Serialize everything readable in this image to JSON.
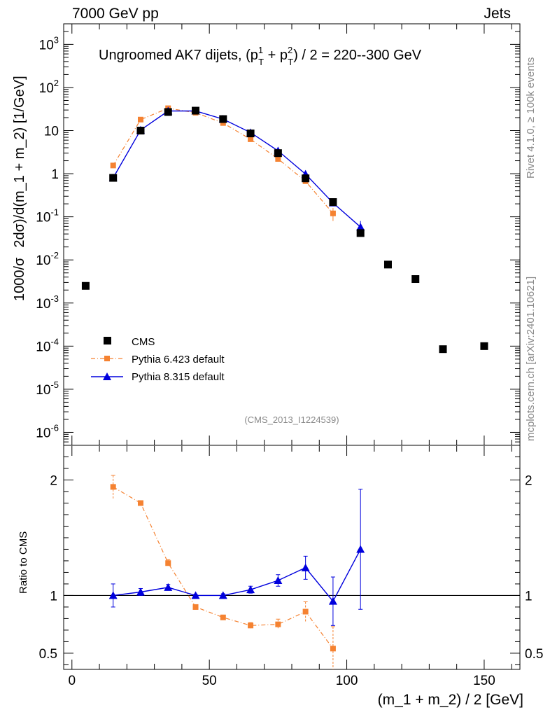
{
  "header": {
    "left": "7000 GeV pp",
    "right": "Jets"
  },
  "side_labels": {
    "rivet": "Rivet 4.1.0, ≥ 100k events",
    "mcplots": "mcplots.cern.ch [arXiv:2401.10621]"
  },
  "colors": {
    "cms": "#000000",
    "py6": "#f58231",
    "py8": "#0000dd"
  },
  "chart_data": [
    {
      "type": "scatter",
      "panel": "main",
      "title": "Ungroomed AK7 dijets, (p_T^1 + p_T^2) / 2 = 220--300 GeV",
      "title_parts": {
        "pre": "Ungroomed AK7 dijets, (p",
        "sub1": "T",
        "sup1": "1",
        "mid": " + p",
        "sub2": "T",
        "sup2": "2",
        "post": ") / 2 = 220--300 GeV"
      },
      "ylabel": "1000/σ   2dσ)/d(m_1 + m_2) [1/GeV]",
      "ylabel_parts": {
        "a": "1000/σ",
        "b": "2dσ)/d(m_1 + m_2) [1/GeV]"
      },
      "yscale": "log",
      "ylim": [
        5e-07,
        3000
      ],
      "y_ticks": [
        {
          "value": 1e-06,
          "base": "10",
          "exp": "-6"
        },
        {
          "value": 1e-05,
          "base": "10",
          "exp": "-5"
        },
        {
          "value": 0.0001,
          "base": "10",
          "exp": "-4"
        },
        {
          "value": 0.001,
          "base": "10",
          "exp": "-3"
        },
        {
          "value": 0.01,
          "base": "10",
          "exp": "-2"
        },
        {
          "value": 0.1,
          "base": "10",
          "exp": "-1"
        },
        {
          "value": 1,
          "base": "1",
          "exp": ""
        },
        {
          "value": 10,
          "base": "10",
          "exp": ""
        },
        {
          "value": 100,
          "base": "10",
          "exp": "2"
        },
        {
          "value": 1000,
          "base": "10",
          "exp": "3"
        }
      ],
      "xlim": [
        -3,
        163
      ],
      "watermark": "(CMS_2013_I1224539)",
      "legend_position": "lower-left",
      "series": [
        {
          "name": "CMS",
          "marker": "square",
          "x": [
            5,
            15,
            25,
            35,
            45,
            55,
            65,
            75,
            85,
            95,
            105,
            115,
            125,
            135,
            150
          ],
          "y": [
            0.0025,
            0.8,
            10,
            27,
            29,
            18.5,
            8.6,
            3.0,
            0.78,
            0.22,
            0.042,
            0.0078,
            0.0036,
            8.5e-05,
            0.0001
          ]
        },
        {
          "name": "Pythia 6.423 default",
          "marker": "square-small",
          "line": "dash-dot",
          "x": [
            15,
            25,
            35,
            45,
            55,
            65,
            75,
            85,
            95
          ],
          "y": [
            1.55,
            18,
            33,
            26,
            15,
            6.3,
            2.2,
            0.67,
            0.12
          ],
          "err": [
            0.1,
            0.6,
            1.2,
            0.8,
            0.5,
            0.25,
            0.12,
            0.07,
            0.04
          ]
        },
        {
          "name": "Pythia 8.315 default",
          "marker": "triangle",
          "line": "solid",
          "x": [
            15,
            25,
            35,
            45,
            55,
            65,
            75,
            85,
            95,
            105
          ],
          "y": [
            0.8,
            10.3,
            28.5,
            28.5,
            18.5,
            9.0,
            3.4,
            0.98,
            0.21,
            0.058
          ],
          "err": [
            0.08,
            0.4,
            0.9,
            0.8,
            0.5,
            0.3,
            0.15,
            0.08,
            0.03,
            0.022
          ]
        }
      ]
    },
    {
      "type": "line",
      "panel": "ratio",
      "ylabel": "Ratio to CMS",
      "xlabel": "(m_1 + m_2) / 2 [GeV]",
      "ylim": [
        0.36,
        2.3
      ],
      "xlim": [
        -3,
        163
      ],
      "y_tick_labels": [
        {
          "value": 0.5,
          "label": "0.5"
        },
        {
          "value": 1,
          "label": "1"
        },
        {
          "value": 2,
          "label": "2"
        }
      ],
      "x_tick_labels": [
        {
          "value": 0,
          "label": "0"
        },
        {
          "value": 50,
          "label": "50"
        },
        {
          "value": 100,
          "label": "100"
        },
        {
          "value": 150,
          "label": "150"
        }
      ],
      "reference_line": 1,
      "series": [
        {
          "name": "Pythia 6.423 default",
          "x": [
            15,
            25,
            35,
            45,
            55,
            65,
            75,
            85,
            95
          ],
          "y": [
            1.94,
            1.8,
            1.28,
            0.9,
            0.81,
            0.74,
            0.75,
            0.86,
            0.54
          ],
          "err": [
            0.1,
            0.02,
            0.03,
            0.01,
            0.02,
            0.025,
            0.045,
            0.085,
            0.19
          ]
        },
        {
          "name": "Pythia 8.315 default",
          "x": [
            15,
            25,
            35,
            45,
            55,
            65,
            75,
            85,
            95,
            105
          ],
          "y": [
            1.0,
            1.03,
            1.07,
            1.0,
            1.0,
            1.05,
            1.13,
            1.24,
            0.95,
            1.4
          ],
          "err": [
            0.1,
            0.03,
            0.025,
            0.01,
            0.015,
            0.03,
            0.05,
            0.1,
            0.21,
            0.52
          ]
        }
      ]
    }
  ]
}
